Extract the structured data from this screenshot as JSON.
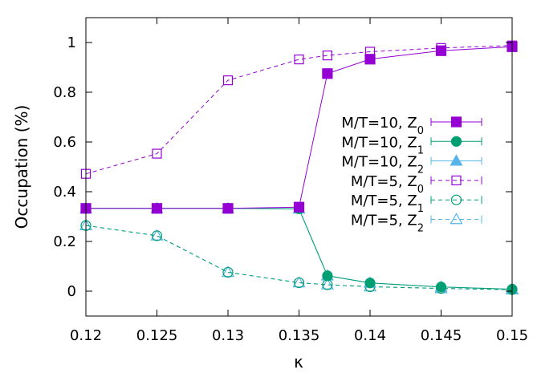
{
  "chart_data": {
    "type": "line",
    "title": "",
    "xlabel": "κ",
    "ylabel": "Occupation (%)",
    "xlim": [
      0.12,
      0.15
    ],
    "ylim": [
      -0.1,
      1.1
    ],
    "x_ticks": [
      "0.12",
      "0.125",
      "0.13",
      "0.135",
      "0.14",
      "0.145",
      "0.15"
    ],
    "y_ticks": [
      "0",
      "0.2",
      "0.4",
      "0.6",
      "0.8",
      "1"
    ],
    "legend_position": "right-middle",
    "grid": false,
    "series": [
      {
        "name": "M/T=10, Z",
        "sub": "0",
        "color": "#9400d3",
        "marker": "square",
        "filled": true,
        "dashed": false,
        "x": [
          0.12,
          0.125,
          0.13,
          0.135,
          0.137,
          0.14,
          0.145,
          0.15
        ],
        "y": [
          0.333,
          0.333,
          0.333,
          0.338,
          0.875,
          0.933,
          0.967,
          0.983
        ]
      },
      {
        "name": "M/T=10, Z",
        "sub": "1",
        "color": "#009e73",
        "marker": "circle",
        "filled": true,
        "dashed": false,
        "x": [
          0.12,
          0.125,
          0.13,
          0.135,
          0.137,
          0.14,
          0.145,
          0.15
        ],
        "y": [
          0.333,
          0.333,
          0.333,
          0.331,
          0.062,
          0.033,
          0.017,
          0.008
        ]
      },
      {
        "name": "M/T=10, Z",
        "sub": "2",
        "color": "#56b4e9",
        "marker": "triangle",
        "filled": true,
        "dashed": false,
        "x": [
          0.12,
          0.125,
          0.13,
          0.135,
          0.137,
          0.14,
          0.145,
          0.15
        ],
        "y": [
          0.333,
          0.333,
          0.333,
          0.331,
          0.062,
          0.033,
          0.017,
          0.008
        ]
      },
      {
        "name": "M/T=5, Z",
        "sub": "0",
        "color": "#9400d3",
        "marker": "square",
        "filled": false,
        "dashed": true,
        "x": [
          0.12,
          0.125,
          0.13,
          0.135,
          0.137,
          0.14,
          0.145,
          0.15
        ],
        "y": [
          0.472,
          0.553,
          0.848,
          0.932,
          0.948,
          0.963,
          0.978,
          0.988
        ]
      },
      {
        "name": "M/T=5, Z",
        "sub": "1",
        "color": "#009e73",
        "marker": "circle",
        "filled": false,
        "dashed": true,
        "x": [
          0.12,
          0.125,
          0.13,
          0.135,
          0.137,
          0.14,
          0.145,
          0.15
        ],
        "y": [
          0.264,
          0.223,
          0.076,
          0.034,
          0.026,
          0.018,
          0.011,
          0.006
        ]
      },
      {
        "name": "M/T=5, Z",
        "sub": "2",
        "color": "#56b4e9",
        "marker": "triangle",
        "filled": false,
        "dashed": true,
        "x": [
          0.12,
          0.125,
          0.13,
          0.135,
          0.137,
          0.14,
          0.145,
          0.15
        ],
        "y": [
          0.264,
          0.223,
          0.076,
          0.034,
          0.026,
          0.018,
          0.011,
          0.006
        ]
      }
    ]
  }
}
